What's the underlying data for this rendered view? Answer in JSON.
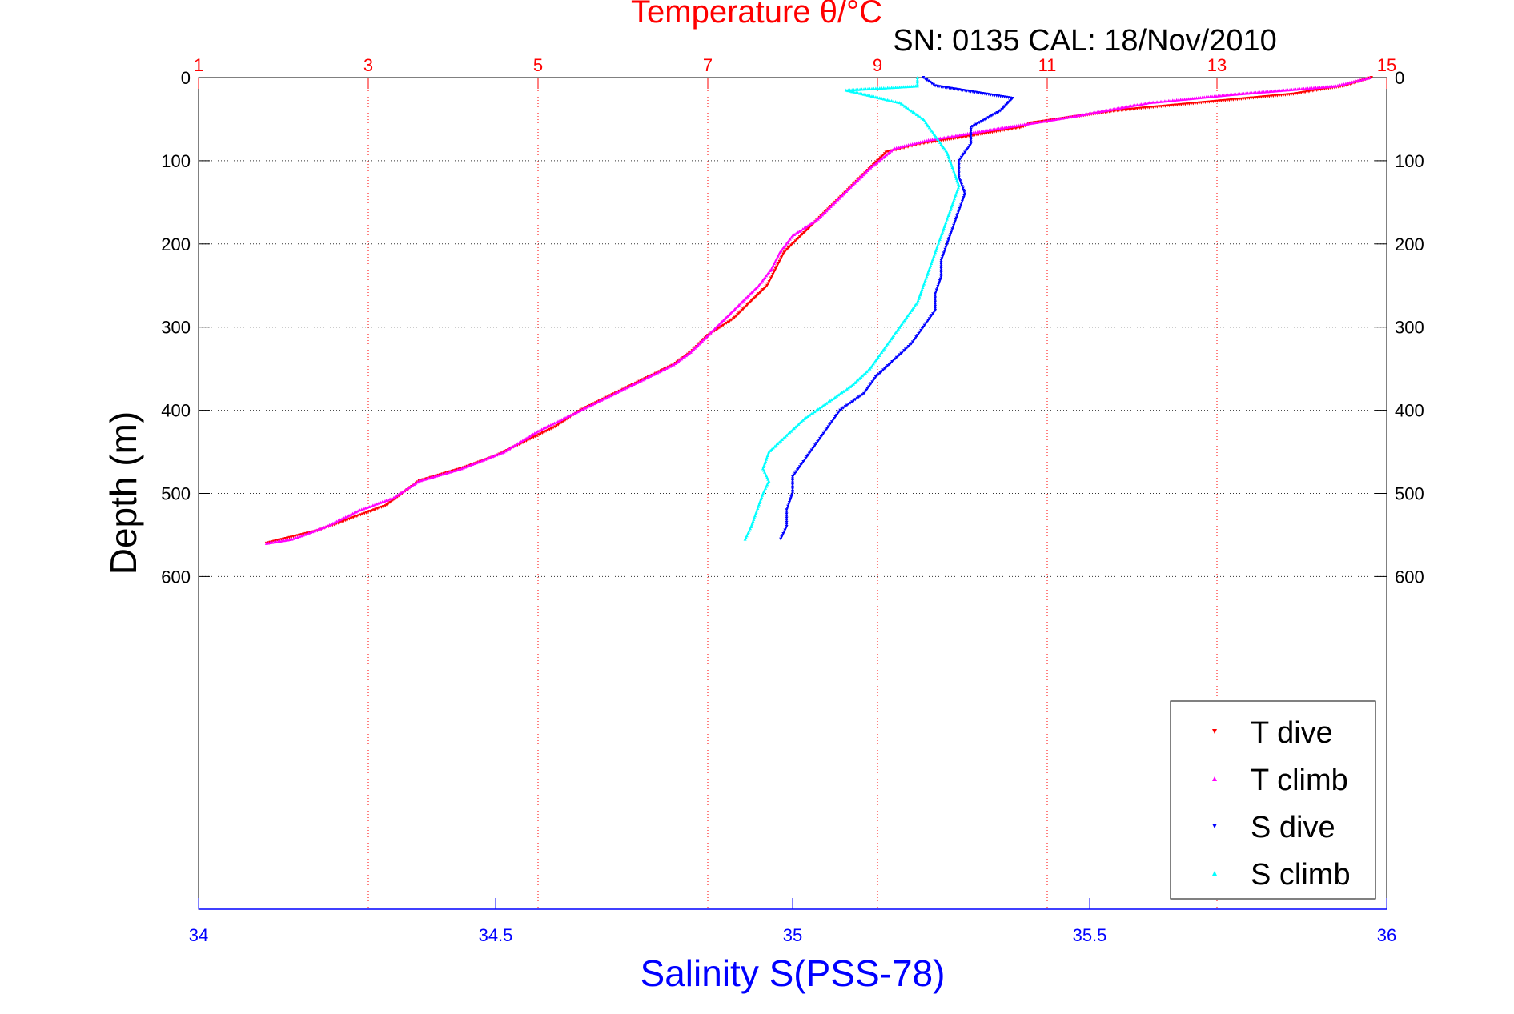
{
  "header": {
    "serial_label": "SN: 0135  CAL: 18/Nov/2010"
  },
  "chart_data": {
    "type": "scatter",
    "title": "Temperature θ/°C",
    "xlabel_bottom": "Salinity S(PSS-78)",
    "xlabel_top": "Temperature θ/°C",
    "ylabel": "Depth (m)",
    "xlim_temperature": [
      1,
      15
    ],
    "xlim_salinity": [
      34,
      36
    ],
    "ylim": [
      0,
      1000
    ],
    "y_reversed": true,
    "temperature_ticks": [
      "1",
      "3",
      "5",
      "7",
      "9",
      "11",
      "13",
      "15"
    ],
    "salinity_ticks": [
      "34",
      "34.5",
      "35",
      "35.5",
      "36"
    ],
    "depth_ticks": [
      "0",
      "100",
      "200",
      "300",
      "400",
      "500",
      "600"
    ],
    "grid": true,
    "legend_position": "bottom-right",
    "colors": {
      "temperature_axis": "#ff0000",
      "salinity_axis": "#0000ff",
      "grid": "#333333"
    },
    "series": [
      {
        "name": "T dive",
        "axis": "temperature",
        "marker": "down-triangle",
        "color": "#ff0000",
        "points": [
          [
            14.82,
            0
          ],
          [
            14.5,
            10
          ],
          [
            13.9,
            20
          ],
          [
            11.8,
            40
          ],
          [
            10.8,
            55
          ],
          [
            10.7,
            60
          ],
          [
            10.4,
            65
          ],
          [
            10.1,
            70
          ],
          [
            9.5,
            80
          ],
          [
            9.1,
            90
          ],
          [
            8.9,
            110
          ],
          [
            8.7,
            130
          ],
          [
            8.5,
            150
          ],
          [
            8.3,
            170
          ],
          [
            8.1,
            190
          ],
          [
            7.9,
            210
          ],
          [
            7.8,
            230
          ],
          [
            7.7,
            250
          ],
          [
            7.5,
            270
          ],
          [
            7.3,
            290
          ],
          [
            7.0,
            310
          ],
          [
            6.8,
            330
          ],
          [
            6.6,
            345
          ],
          [
            6.3,
            360
          ],
          [
            6.0,
            375
          ],
          [
            5.7,
            390
          ],
          [
            5.5,
            400
          ],
          [
            5.2,
            420
          ],
          [
            4.8,
            440
          ],
          [
            4.5,
            455
          ],
          [
            4.1,
            470
          ],
          [
            3.6,
            485
          ],
          [
            3.4,
            500
          ],
          [
            3.2,
            515
          ],
          [
            2.8,
            530
          ],
          [
            2.4,
            545
          ],
          [
            2.0,
            555
          ],
          [
            1.8,
            560
          ]
        ]
      },
      {
        "name": "T climb",
        "axis": "temperature",
        "marker": "up-triangle",
        "color": "#ff00ff",
        "points": [
          [
            14.8,
            0
          ],
          [
            14.4,
            10
          ],
          [
            13.2,
            20
          ],
          [
            12.2,
            30
          ],
          [
            11.4,
            45
          ],
          [
            10.8,
            55
          ],
          [
            10.2,
            65
          ],
          [
            9.6,
            75
          ],
          [
            9.2,
            85
          ],
          [
            8.9,
            110
          ],
          [
            8.7,
            130
          ],
          [
            8.5,
            150
          ],
          [
            8.3,
            170
          ],
          [
            8.0,
            190
          ],
          [
            7.85,
            210
          ],
          [
            7.75,
            230
          ],
          [
            7.6,
            250
          ],
          [
            7.4,
            270
          ],
          [
            7.2,
            290
          ],
          [
            7.0,
            310
          ],
          [
            6.8,
            330
          ],
          [
            6.6,
            345
          ],
          [
            6.3,
            360
          ],
          [
            6.0,
            375
          ],
          [
            5.6,
            395
          ],
          [
            5.3,
            410
          ],
          [
            5.0,
            425
          ],
          [
            4.6,
            450
          ],
          [
            4.1,
            470
          ],
          [
            3.6,
            485
          ],
          [
            3.3,
            505
          ],
          [
            2.9,
            520
          ],
          [
            2.5,
            540
          ],
          [
            2.1,
            555
          ],
          [
            1.8,
            560
          ]
        ]
      },
      {
        "name": "S dive",
        "axis": "salinity",
        "marker": "down-triangle",
        "color": "#0000ff",
        "points": [
          [
            35.22,
            0
          ],
          [
            35.24,
            10
          ],
          [
            35.37,
            25
          ],
          [
            35.35,
            40
          ],
          [
            35.3,
            60
          ],
          [
            35.3,
            80
          ],
          [
            35.28,
            100
          ],
          [
            35.28,
            120
          ],
          [
            35.29,
            140
          ],
          [
            35.28,
            160
          ],
          [
            35.27,
            180
          ],
          [
            35.26,
            200
          ],
          [
            35.25,
            220
          ],
          [
            35.25,
            240
          ],
          [
            35.24,
            260
          ],
          [
            35.24,
            280
          ],
          [
            35.22,
            300
          ],
          [
            35.2,
            320
          ],
          [
            35.17,
            340
          ],
          [
            35.14,
            360
          ],
          [
            35.12,
            380
          ],
          [
            35.08,
            400
          ],
          [
            35.06,
            420
          ],
          [
            35.04,
            440
          ],
          [
            35.02,
            460
          ],
          [
            35.0,
            480
          ],
          [
            35.0,
            500
          ],
          [
            34.99,
            520
          ],
          [
            34.99,
            540
          ],
          [
            34.98,
            555
          ]
        ]
      },
      {
        "name": "S climb",
        "axis": "salinity",
        "marker": "up-triangle",
        "color": "#00ffff",
        "points": [
          [
            35.21,
            0
          ],
          [
            35.21,
            10
          ],
          [
            35.09,
            15
          ],
          [
            35.18,
            30
          ],
          [
            35.22,
            50
          ],
          [
            35.24,
            70
          ],
          [
            35.26,
            90
          ],
          [
            35.27,
            110
          ],
          [
            35.28,
            130
          ],
          [
            35.27,
            150
          ],
          [
            35.26,
            170
          ],
          [
            35.25,
            190
          ],
          [
            35.24,
            210
          ],
          [
            35.23,
            230
          ],
          [
            35.22,
            250
          ],
          [
            35.21,
            270
          ],
          [
            35.19,
            290
          ],
          [
            35.17,
            310
          ],
          [
            35.15,
            330
          ],
          [
            35.13,
            350
          ],
          [
            35.1,
            370
          ],
          [
            35.06,
            390
          ],
          [
            35.02,
            410
          ],
          [
            34.99,
            430
          ],
          [
            34.96,
            450
          ],
          [
            34.95,
            470
          ],
          [
            34.96,
            485
          ],
          [
            34.95,
            500
          ],
          [
            34.94,
            520
          ],
          [
            34.93,
            540
          ],
          [
            34.92,
            555
          ]
        ]
      }
    ]
  }
}
